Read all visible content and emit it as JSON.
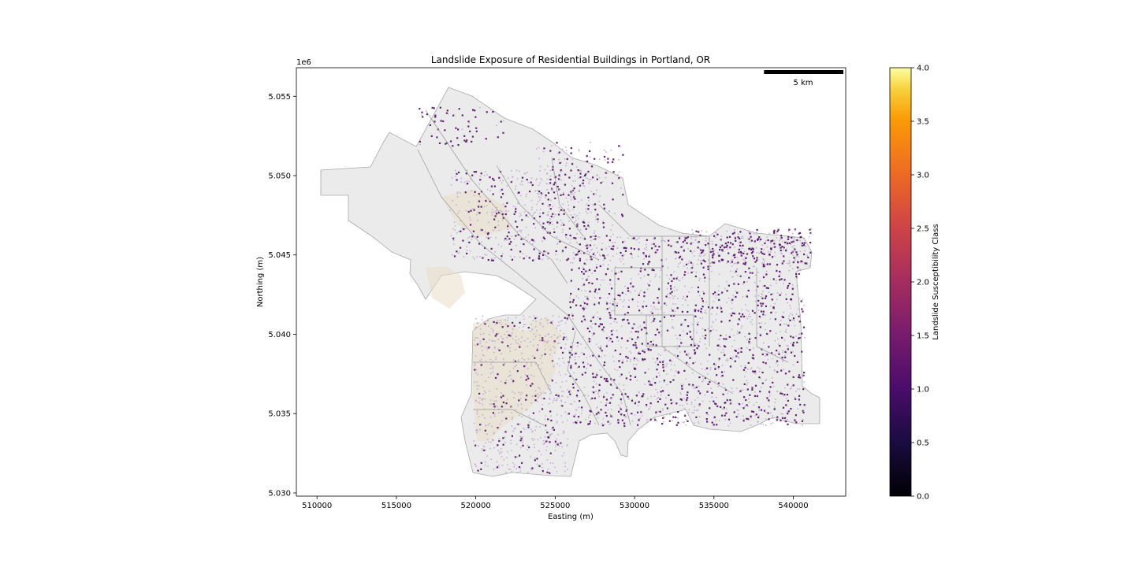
{
  "figure": {
    "title": "Landslide Exposure of Residential Buildings in Portland, OR",
    "xlabel": "Easting (m)",
    "ylabel": "Northing (m)",
    "y_offset_label": "1e6",
    "x_ticks": [
      {
        "value": 510000,
        "label": "510000"
      },
      {
        "value": 515000,
        "label": "515000"
      },
      {
        "value": 520000,
        "label": "520000"
      },
      {
        "value": 525000,
        "label": "525000"
      },
      {
        "value": 530000,
        "label": "530000"
      },
      {
        "value": 535000,
        "label": "535000"
      },
      {
        "value": 540000,
        "label": "540000"
      }
    ],
    "y_ticks": [
      {
        "value": 5030000,
        "label": "5.030"
      },
      {
        "value": 5035000,
        "label": "5.035"
      },
      {
        "value": 5040000,
        "label": "5.040"
      },
      {
        "value": 5045000,
        "label": "5.045"
      },
      {
        "value": 5050000,
        "label": "5.050"
      },
      {
        "value": 5055000,
        "label": "5.055"
      }
    ],
    "x_range": [
      508700,
      543300
    ],
    "y_range": [
      5029800,
      5056800
    ],
    "scalebar": {
      "label": "5 km",
      "length_m": 5000
    },
    "colorbar": {
      "label": "Landslide Susceptibility Class",
      "colormap": "inferno",
      "range": [
        0,
        4
      ],
      "ticks": [
        {
          "value": 0.0,
          "label": "0.0"
        },
        {
          "value": 0.5,
          "label": "0.5"
        },
        {
          "value": 1.0,
          "label": "1.0"
        },
        {
          "value": 1.5,
          "label": "1.5"
        },
        {
          "value": 2.0,
          "label": "2.0"
        },
        {
          "value": 2.5,
          "label": "2.5"
        },
        {
          "value": 3.0,
          "label": "3.0"
        },
        {
          "value": 3.5,
          "label": "3.5"
        },
        {
          "value": 4.0,
          "label": "4.0"
        }
      ]
    },
    "colors": {
      "boundary_fill": "#ebebeb",
      "boundary_stroke": "#a9a9a9",
      "building_main": "#5b1a6e",
      "building_light": "#b8a4c6",
      "hill_tint": "#e8dcc8"
    }
  }
}
